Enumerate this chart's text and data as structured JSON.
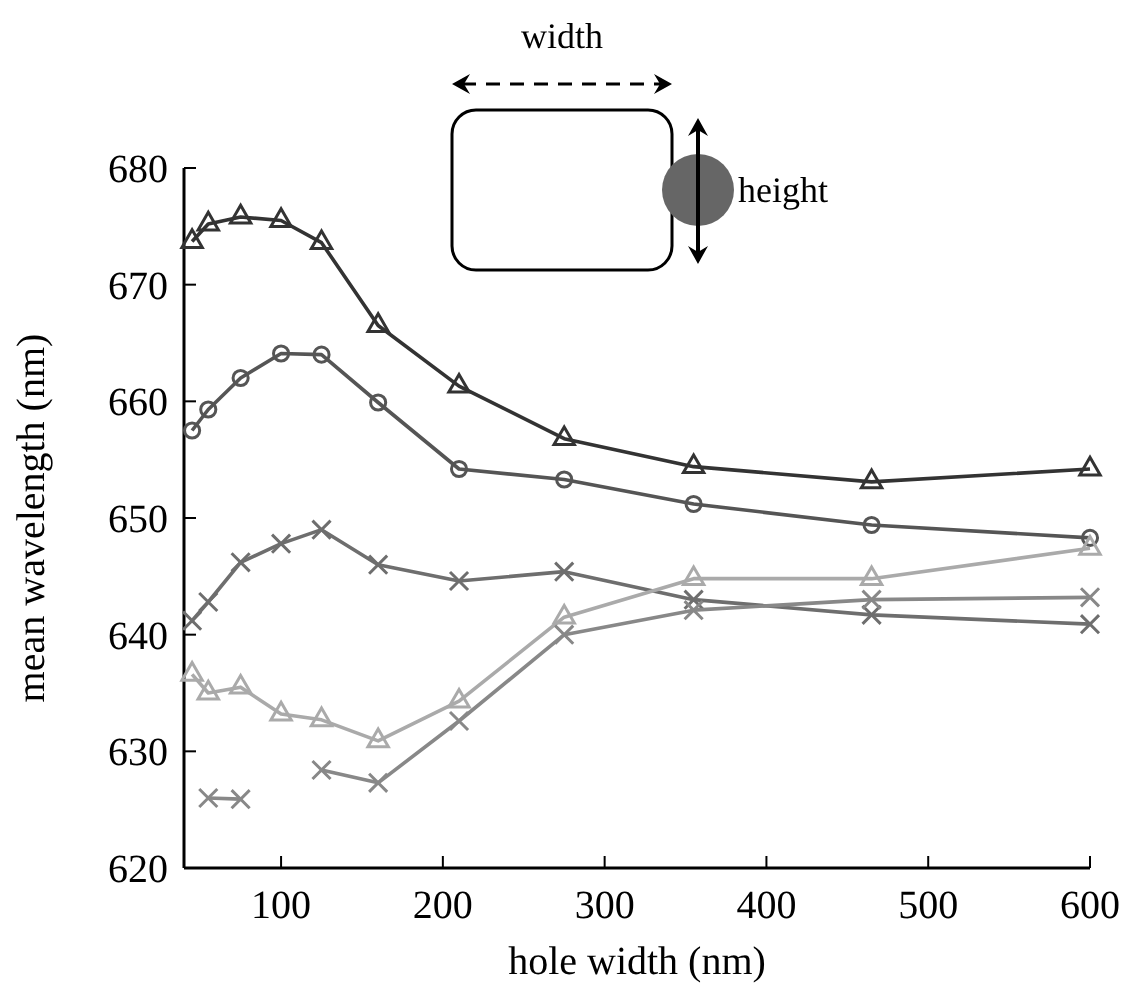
{
  "chart_data": {
    "type": "line",
    "xlabel": "hole width (nm)",
    "ylabel": "mean wavelength (nm)",
    "x": [
      45,
      55,
      75,
      100,
      125,
      160,
      210,
      275,
      355,
      465,
      600
    ],
    "series": [
      {
        "color": "#333333",
        "marker": "triangle",
        "values": [
          673.7,
          675.2,
          675.8,
          675.5,
          673.6,
          666.5,
          661.3,
          656.8,
          654.4,
          653.1,
          654.2
        ]
      },
      {
        "color": "#555555",
        "marker": "circle",
        "values": [
          657.5,
          659.3,
          662,
          664.1,
          664,
          659.9,
          654.2,
          653.3,
          651.2,
          649.4,
          648.3
        ]
      },
      {
        "color": "#6e6e6e",
        "marker": "cross",
        "values": [
          641.2,
          642.8,
          646.2,
          647.8,
          649,
          646,
          644.6,
          645.4,
          643,
          641.7,
          640.9
        ]
      },
      {
        "color": "#aaaaaa",
        "marker": "triangle",
        "values": [
          636.6,
          635,
          635.5,
          633.2,
          632.7,
          630.9,
          634.3,
          641.5,
          644.8,
          644.8,
          647.4
        ]
      },
      {
        "color": "#888888",
        "marker": "cross",
        "values": [
          null,
          626,
          625.9,
          null,
          628.4,
          627.3,
          632.6,
          640,
          642.1,
          643,
          643.2
        ]
      }
    ],
    "xlim": [
      40,
      600
    ],
    "xticks": [
      100,
      200,
      300,
      400,
      500,
      600
    ],
    "ylim": [
      620,
      680
    ],
    "yticks": [
      620,
      630,
      640,
      650,
      660,
      670,
      680
    ],
    "grid": false,
    "line_style": "solid",
    "annotations": [
      "width",
      "height"
    ]
  }
}
